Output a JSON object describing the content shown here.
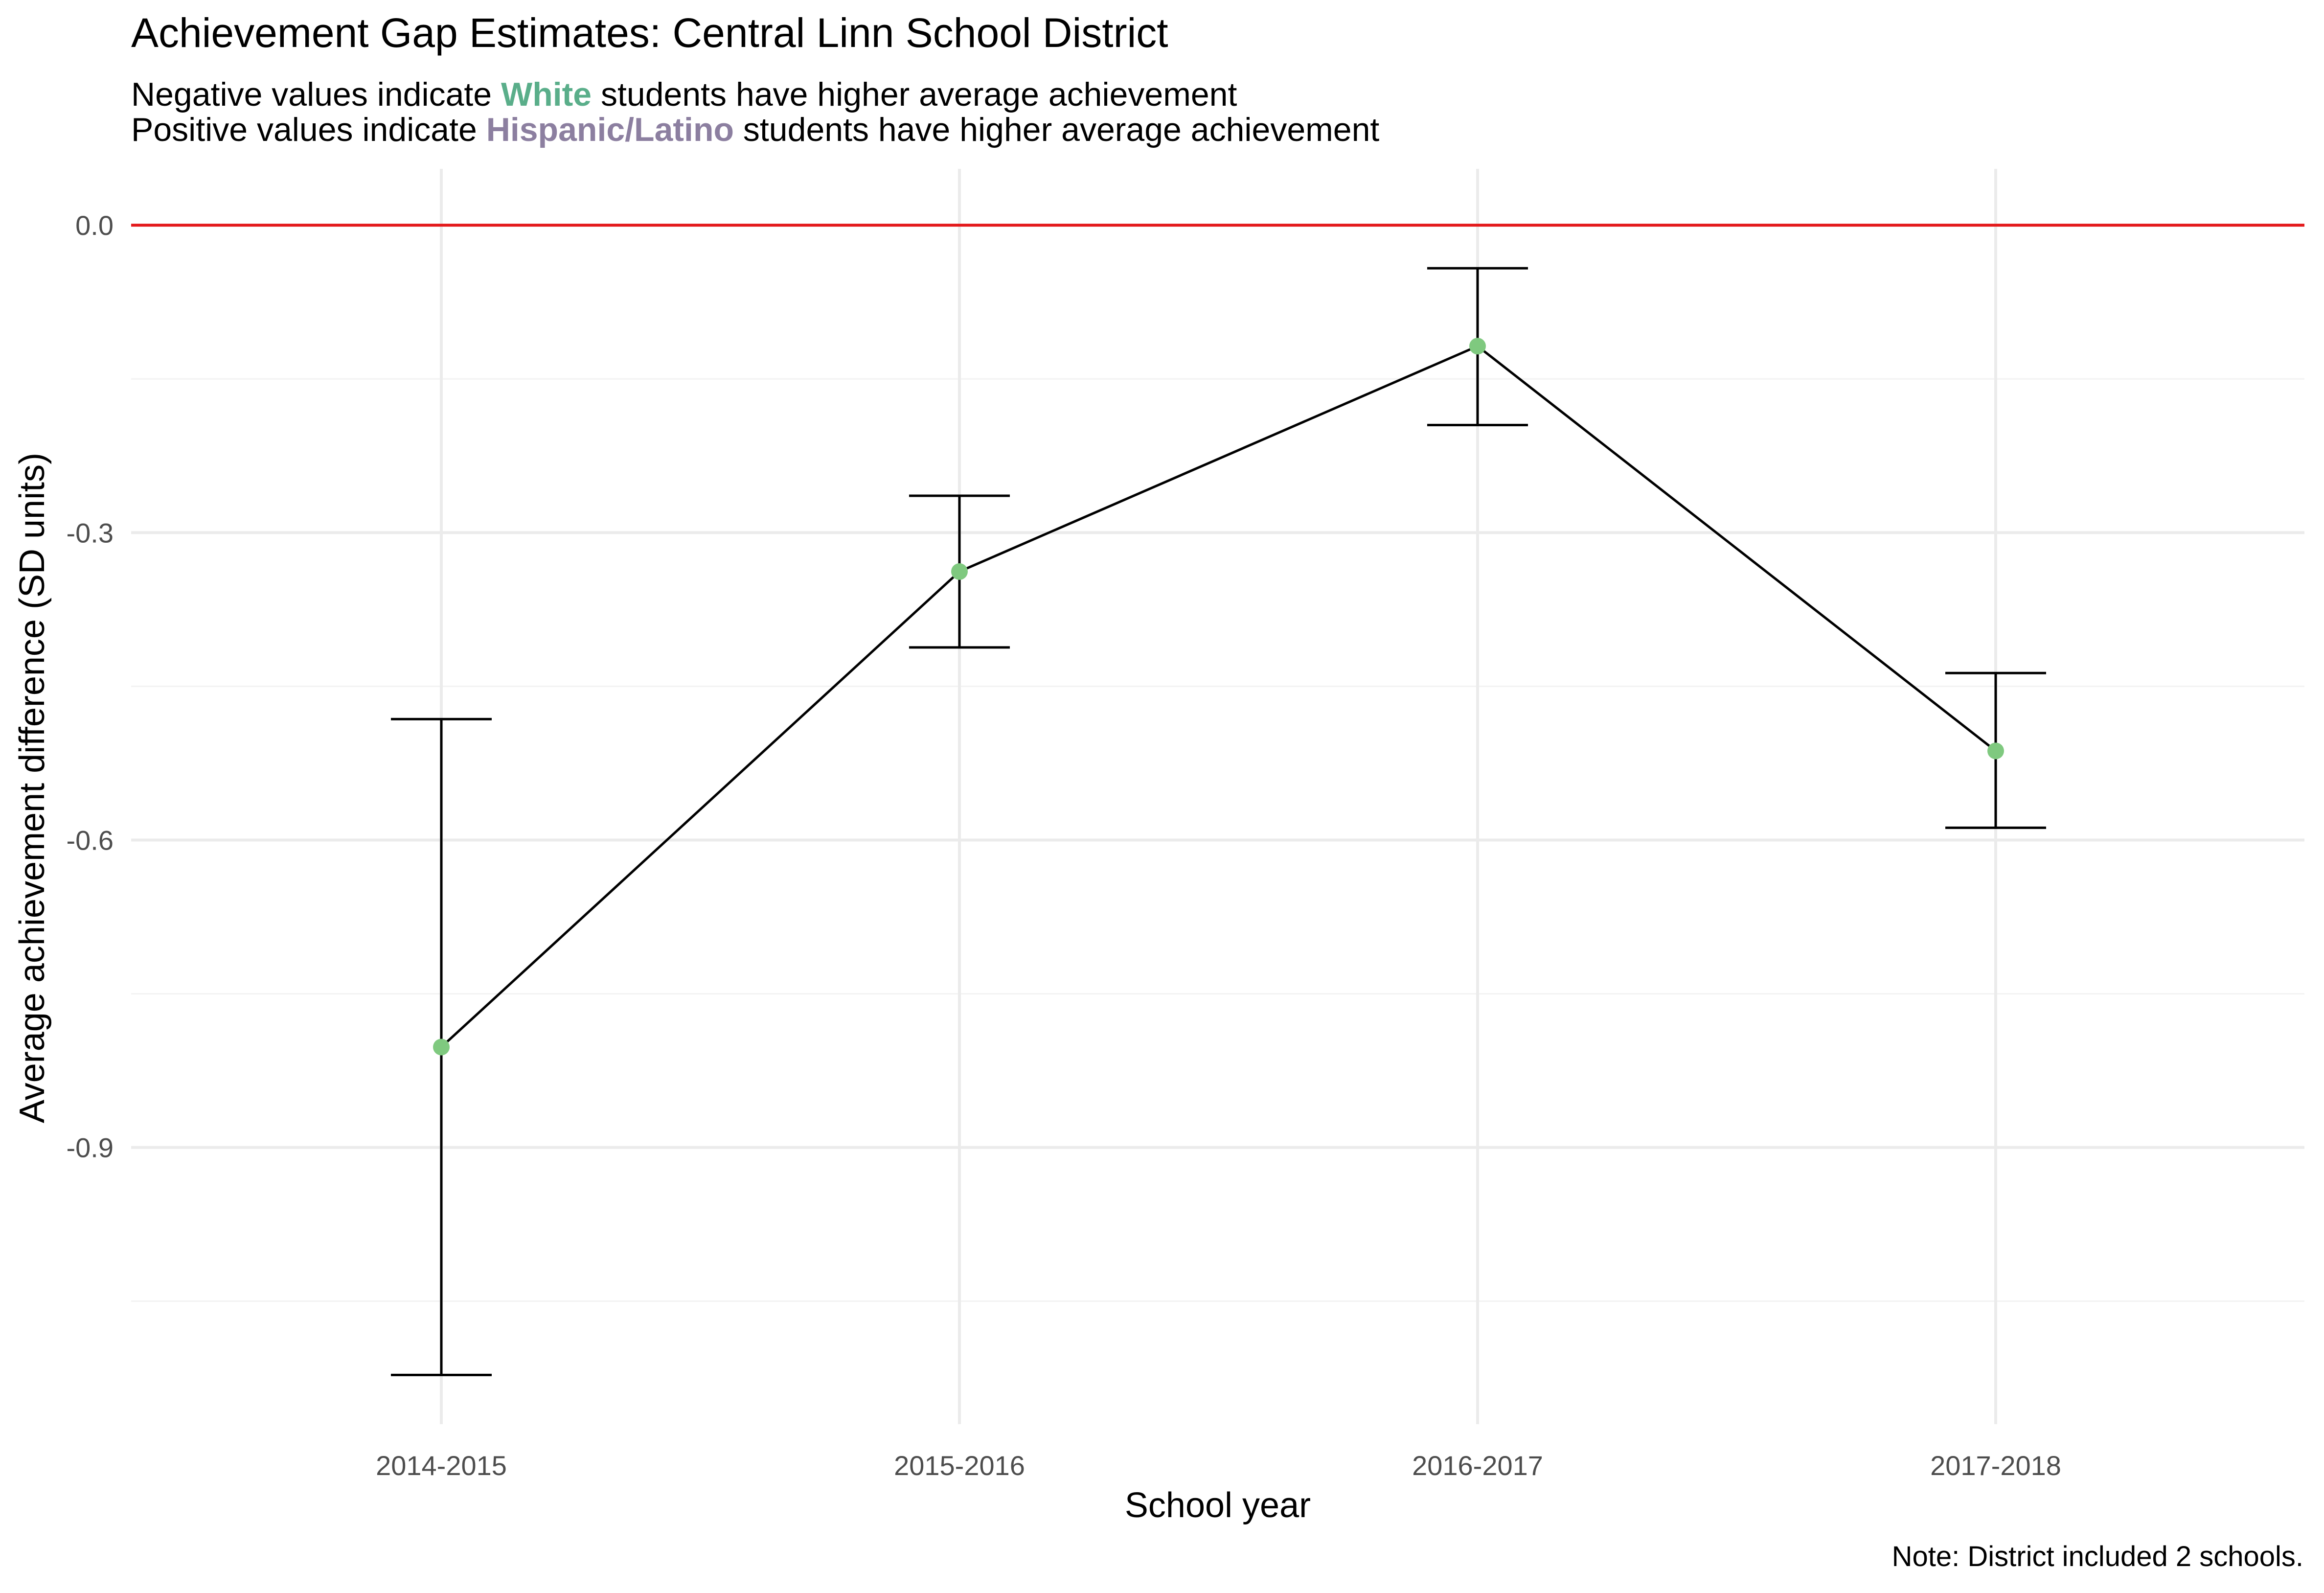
{
  "chart_data": {
    "type": "line",
    "title": "Achievement Gap Estimates: Central Linn School District",
    "subtitle": {
      "line1": {
        "prefix": "Negative values indicate ",
        "highlight": "White",
        "suffix": " students have higher average achievement"
      },
      "line2": {
        "prefix": "Positive values indicate ",
        "highlight": "Hispanic/Latino",
        "suffix": " students have higher average achievement"
      }
    },
    "xlabel": "School year",
    "ylabel": "Average achievement difference (SD units)",
    "caption": "Note: District included 2 schools.",
    "categories": [
      "2014-2015",
      "2015-2016",
      "2016-2017",
      "2017-2018"
    ],
    "series": [
      {
        "values": [
          -0.802,
          -0.338,
          -0.118,
          -0.513
        ],
        "lower": [
          -1.122,
          -0.412,
          -0.195,
          -0.588
        ],
        "upper": [
          -0.482,
          -0.264,
          -0.042,
          -0.437
        ]
      }
    ],
    "ylim": [
      -1.17,
      0.055
    ],
    "yticks": [
      0.0,
      -0.3,
      -0.6,
      -0.9
    ],
    "ytick_labels": [
      "0.0",
      "-0.3",
      "-0.6",
      "-0.9"
    ],
    "reference_line": 0.0,
    "grid": true,
    "legend": "none",
    "colors": {
      "point": "#7fc97f",
      "line": "#000000",
      "errorbar": "#000000",
      "reference_line": "#e41a1c",
      "white_highlight": "#5aae8a",
      "hispanic_highlight": "#8c7fa0",
      "grid_major": "#ebebeb",
      "grid_minor": "#f3f3f3",
      "text": "#000000",
      "tick_text": "#4d4d4d"
    }
  }
}
